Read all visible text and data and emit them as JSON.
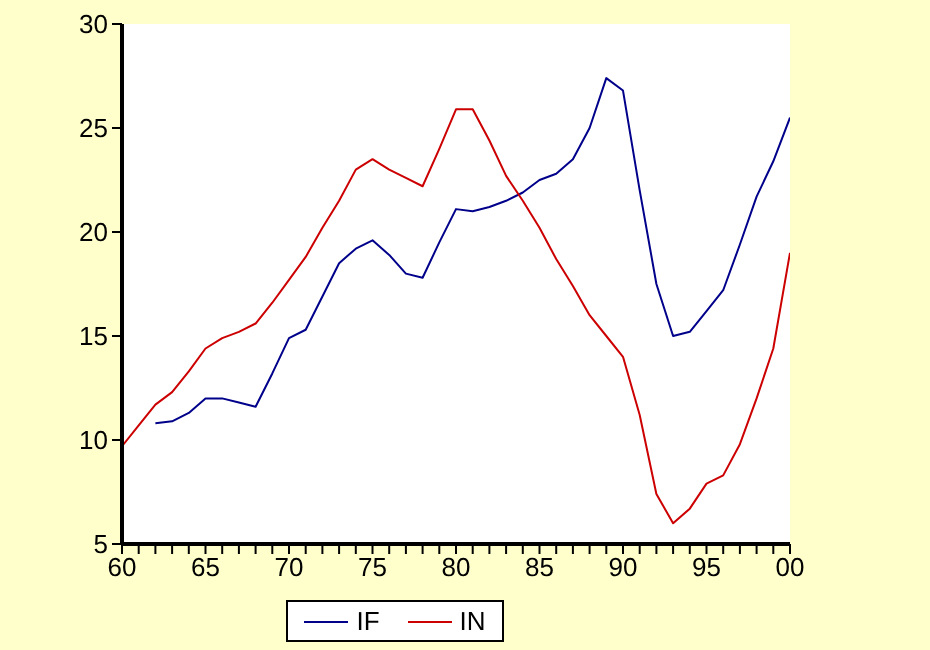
{
  "chart_data": {
    "type": "line",
    "x": [
      1960,
      1961,
      1962,
      1963,
      1964,
      1965,
      1966,
      1967,
      1968,
      1969,
      1970,
      1971,
      1972,
      1973,
      1974,
      1975,
      1976,
      1977,
      1978,
      1979,
      1980,
      1981,
      1982,
      1983,
      1984,
      1985,
      1986,
      1987,
      1988,
      1989,
      1990,
      1991,
      1992,
      1993,
      1994,
      1995,
      1996,
      1997,
      1998,
      1999,
      2000
    ],
    "series": [
      {
        "name": "IF",
        "color": "#00008b",
        "values": [
          null,
          null,
          10.8,
          10.9,
          11.3,
          12.0,
          12.0,
          11.8,
          11.6,
          13.2,
          14.9,
          15.3,
          16.9,
          18.5,
          19.2,
          19.6,
          18.9,
          18.0,
          17.8,
          19.5,
          21.1,
          21.0,
          21.2,
          21.5,
          21.9,
          22.5,
          22.8,
          23.5,
          25.0,
          27.4,
          26.8,
          22.0,
          17.5,
          15.0,
          15.2,
          16.2,
          17.2,
          19.4,
          21.7,
          23.4,
          25.5
        ]
      },
      {
        "name": "IN",
        "color": "#cc0000",
        "values": [
          9.7,
          10.7,
          11.7,
          12.3,
          13.3,
          14.4,
          14.9,
          15.2,
          15.6,
          16.6,
          17.7,
          18.8,
          20.2,
          21.5,
          23.0,
          23.5,
          23.0,
          22.6,
          22.2,
          24.0,
          25.9,
          25.9,
          24.4,
          22.7,
          21.5,
          20.2,
          18.7,
          17.4,
          16.0,
          15.0,
          14.0,
          11.2,
          7.4,
          6.0,
          6.7,
          7.9,
          8.3,
          9.8,
          12.0,
          14.4,
          19.0
        ]
      }
    ],
    "xlim": [
      1960,
      2000
    ],
    "xticks": [
      {
        "value": 1960,
        "label": "60"
      },
      {
        "value": 1961,
        "label": null
      },
      {
        "value": 1962,
        "label": null
      },
      {
        "value": 1963,
        "label": null
      },
      {
        "value": 1964,
        "label": null
      },
      {
        "value": 1965,
        "label": "65"
      },
      {
        "value": 1966,
        "label": null
      },
      {
        "value": 1967,
        "label": null
      },
      {
        "value": 1968,
        "label": null
      },
      {
        "value": 1969,
        "label": null
      },
      {
        "value": 1970,
        "label": "70"
      },
      {
        "value": 1971,
        "label": null
      },
      {
        "value": 1972,
        "label": null
      },
      {
        "value": 1973,
        "label": null
      },
      {
        "value": 1974,
        "label": null
      },
      {
        "value": 1975,
        "label": "75"
      },
      {
        "value": 1976,
        "label": null
      },
      {
        "value": 1977,
        "label": null
      },
      {
        "value": 1978,
        "label": null
      },
      {
        "value": 1979,
        "label": null
      },
      {
        "value": 1980,
        "label": "80"
      },
      {
        "value": 1981,
        "label": null
      },
      {
        "value": 1982,
        "label": null
      },
      {
        "value": 1983,
        "label": null
      },
      {
        "value": 1984,
        "label": null
      },
      {
        "value": 1985,
        "label": "85"
      },
      {
        "value": 1986,
        "label": null
      },
      {
        "value": 1987,
        "label": null
      },
      {
        "value": 1988,
        "label": null
      },
      {
        "value": 1989,
        "label": null
      },
      {
        "value": 1990,
        "label": "90"
      },
      {
        "value": 1991,
        "label": null
      },
      {
        "value": 1992,
        "label": null
      },
      {
        "value": 1993,
        "label": null
      },
      {
        "value": 1994,
        "label": null
      },
      {
        "value": 1995,
        "label": "95"
      },
      {
        "value": 1996,
        "label": null
      },
      {
        "value": 1997,
        "label": null
      },
      {
        "value": 1998,
        "label": null
      },
      {
        "value": 1999,
        "label": null
      },
      {
        "value": 2000,
        "label": "00"
      }
    ],
    "ylim": [
      5,
      30
    ],
    "yticks": [
      5,
      10,
      15,
      20,
      25,
      30
    ],
    "grid": false,
    "legend": "bottom",
    "marker": "none",
    "line_style": "solid"
  }
}
